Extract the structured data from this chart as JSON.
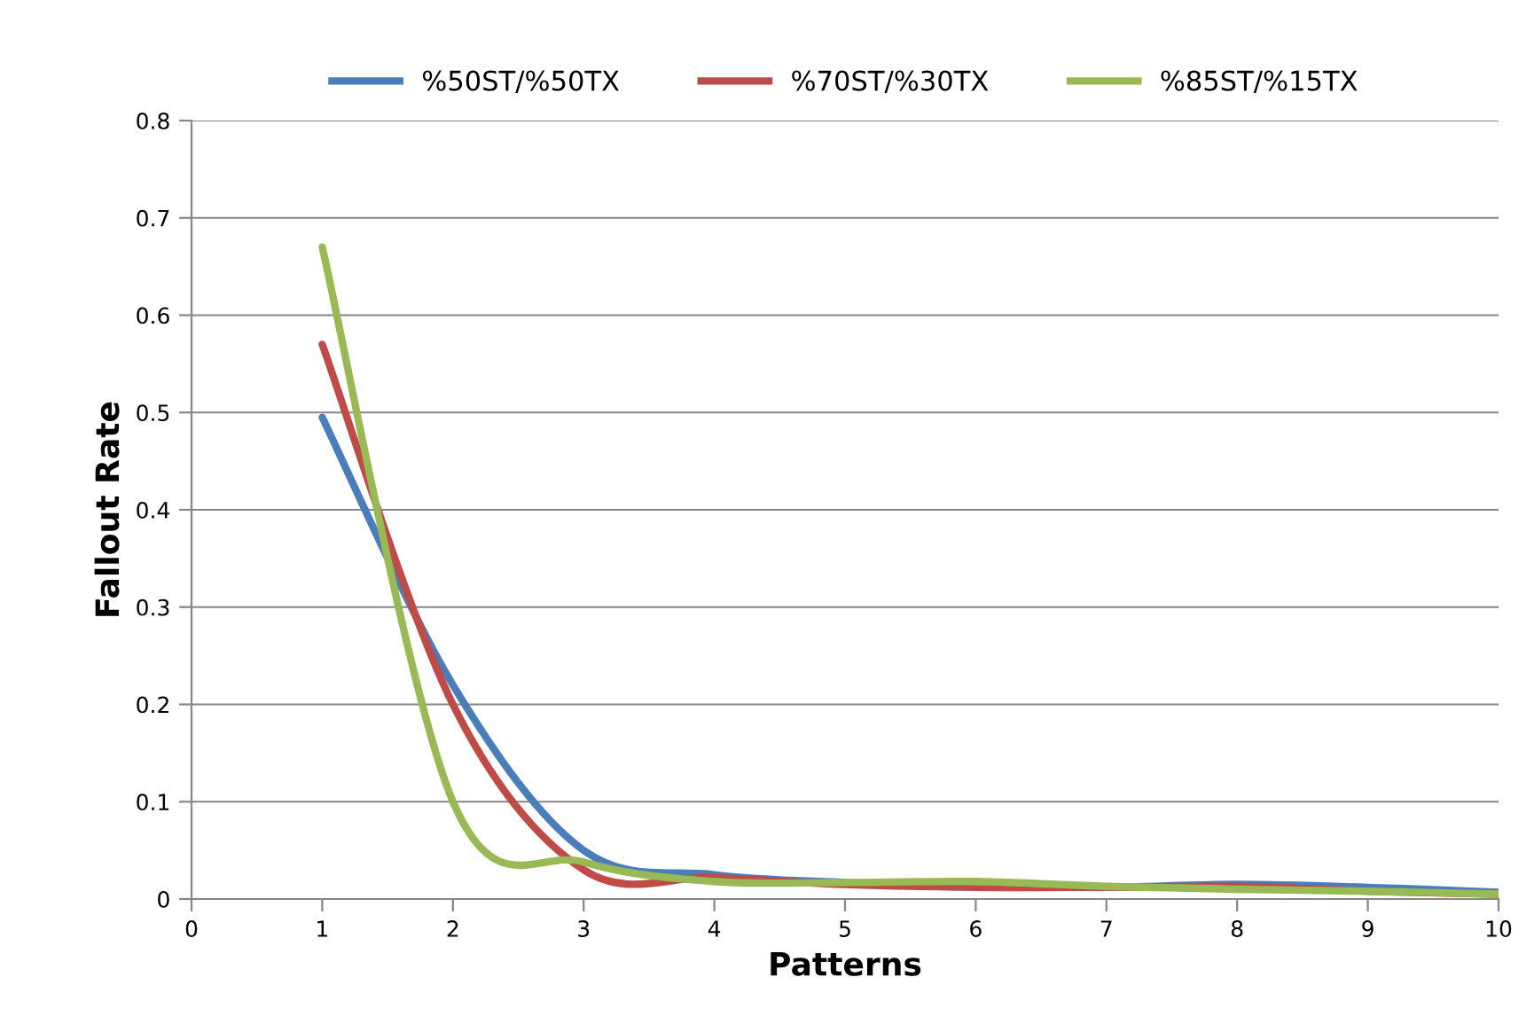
{
  "chart_data": {
    "type": "line",
    "xlabel": "Patterns",
    "ylabel": "Fallout Rate",
    "x": [
      1,
      2,
      3,
      4,
      5,
      6,
      7,
      8,
      9,
      10
    ],
    "series": [
      {
        "name": "%50ST/%50TX",
        "color": "#4a7ebb",
        "values": [
          0.495,
          0.22,
          0.05,
          0.025,
          0.017,
          0.013,
          0.012,
          0.015,
          0.012,
          0.007
        ]
      },
      {
        "name": "%70ST/%30TX",
        "color": "#be4b48",
        "values": [
          0.57,
          0.2,
          0.03,
          0.022,
          0.015,
          0.012,
          0.012,
          0.013,
          0.008,
          0.005
        ]
      },
      {
        "name": "%85ST/%15TX",
        "color": "#98b954",
        "values": [
          0.67,
          0.1,
          0.038,
          0.018,
          0.017,
          0.018,
          0.013,
          0.01,
          0.008,
          0.005
        ]
      }
    ],
    "xlim": [
      0,
      10
    ],
    "xticks": [
      0,
      1,
      2,
      3,
      4,
      5,
      6,
      7,
      8,
      9,
      10
    ],
    "ylim": [
      0,
      0.8
    ],
    "yticks": [
      0,
      0.1,
      0.2,
      0.3,
      0.4,
      0.5,
      0.6,
      0.7,
      0.8
    ],
    "grid": "y",
    "legend": "top",
    "marker": "none",
    "line_style": "solid"
  }
}
